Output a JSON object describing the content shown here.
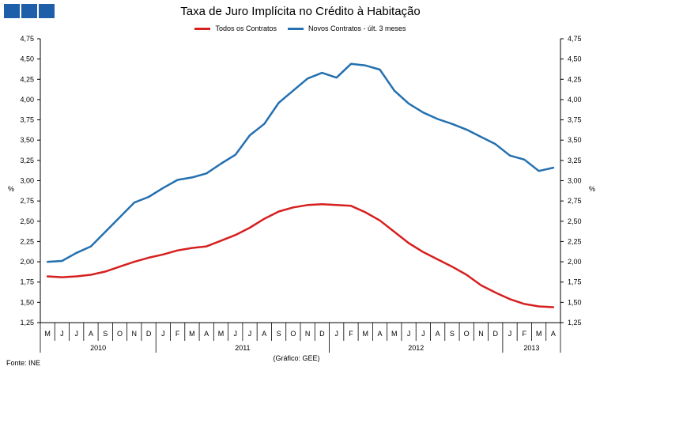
{
  "chart_data": {
    "type": "line",
    "title": "Taxa de Juro Implícita no Crédito à Habitação",
    "ylabel_left": "%",
    "ylabel_right": "%",
    "ylim": [
      1.25,
      4.75
    ],
    "yticks": [
      "1,25",
      "1,50",
      "1,75",
      "2,00",
      "2,25",
      "2,50",
      "2,75",
      "3,00",
      "3,25",
      "3,50",
      "3,75",
      "4,00",
      "4,25",
      "4,50",
      "4,75"
    ],
    "months": [
      "M",
      "J",
      "J",
      "A",
      "S",
      "O",
      "N",
      "D",
      "J",
      "F",
      "M",
      "A",
      "M",
      "J",
      "J",
      "A",
      "S",
      "O",
      "N",
      "D",
      "J",
      "F",
      "M",
      "A",
      "M",
      "J",
      "J",
      "A",
      "S",
      "O",
      "N",
      "D",
      "J",
      "F",
      "M",
      "A"
    ],
    "years": [
      {
        "label": "2010",
        "start": 0,
        "end": 8
      },
      {
        "label": "2011",
        "start": 8,
        "end": 20
      },
      {
        "label": "2012",
        "start": 20,
        "end": 32
      },
      {
        "label": "2013",
        "start": 32,
        "end": 36
      }
    ],
    "series": [
      {
        "name": "Todos os Contratos",
        "color": "#d62020",
        "values": [
          1.82,
          1.81,
          1.82,
          1.84,
          1.88,
          1.94,
          2.0,
          2.05,
          2.09,
          2.14,
          2.17,
          2.19,
          2.26,
          2.33,
          2.42,
          2.53,
          2.62,
          2.67,
          2.7,
          2.71,
          2.7,
          2.69,
          2.61,
          2.51,
          2.37,
          2.23,
          2.12,
          2.03,
          1.94,
          1.84,
          1.71,
          1.62,
          1.54,
          1.48,
          1.45,
          1.44
        ]
      },
      {
        "name": "Novos Contratos - últ. 3 meses",
        "color": "#2470b0",
        "values": [
          2.0,
          2.01,
          2.11,
          2.19,
          2.37,
          2.55,
          2.73,
          2.8,
          2.91,
          3.01,
          3.04,
          3.09,
          3.21,
          3.32,
          3.56,
          3.7,
          3.96,
          4.11,
          4.26,
          4.33,
          4.27,
          4.44,
          4.42,
          4.37,
          4.11,
          3.95,
          3.84,
          3.76,
          3.7,
          3.63,
          3.54,
          3.45,
          3.31,
          3.26,
          3.12,
          3.16
        ]
      }
    ]
  },
  "legend": {
    "series1_label": "Todos os Contratos",
    "series2_label": "Novos Contratos - últ. 3 meses"
  },
  "footer": {
    "source": "Fonte: INE",
    "credit": "(Gráfico: GEE)"
  }
}
